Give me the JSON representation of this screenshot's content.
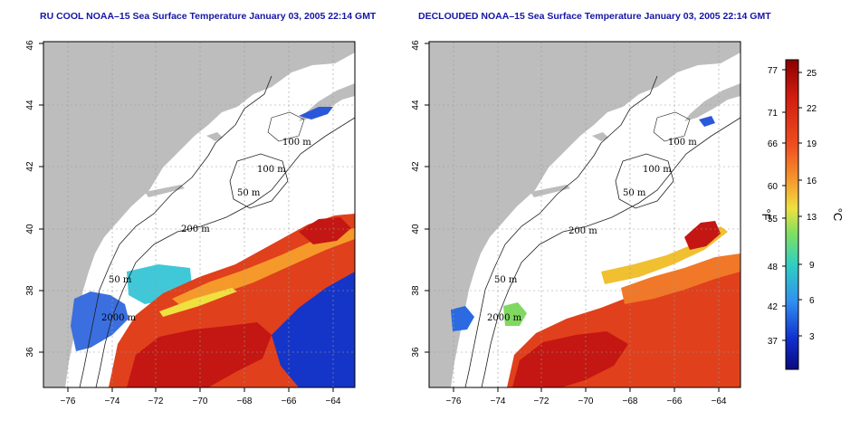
{
  "panels": [
    {
      "id": "left",
      "title": "RU COOL NOAA–15 Sea Surface Temperature January 03, 2005 22:14 GMT",
      "contours": [
        "100 m",
        "100 m",
        "50 m",
        "200 m",
        "50 m",
        "2000 m"
      ]
    },
    {
      "id": "right",
      "title": "DECLOUDED NOAA–15 Sea Surface Temperature January 03, 2005 22:14 GMT",
      "contours": [
        "100 m",
        "100 m",
        "50 m",
        "200 m",
        "50 m",
        "2000 m"
      ]
    }
  ],
  "axes": {
    "x_ticks": [
      "−76",
      "−74",
      "−72",
      "−70",
      "−68",
      "−66",
      "−64"
    ],
    "y_ticks": [
      "36",
      "38",
      "40",
      "42",
      "44",
      "46"
    ]
  },
  "colorbar": {
    "f_label": "°F",
    "c_label": "°C",
    "f_ticks": [
      "77",
      "71",
      "66",
      "60",
      "55",
      "48",
      "42",
      "37"
    ],
    "c_ticks": [
      "25",
      "22",
      "19",
      "16",
      "13",
      "9",
      "6",
      "3"
    ],
    "colors": [
      "#8b0000",
      "#d01c10",
      "#f05020",
      "#f5a030",
      "#f0e040",
      "#80e060",
      "#30d0c0",
      "#3090f0",
      "#1030d0",
      "#0a0a80"
    ]
  }
}
